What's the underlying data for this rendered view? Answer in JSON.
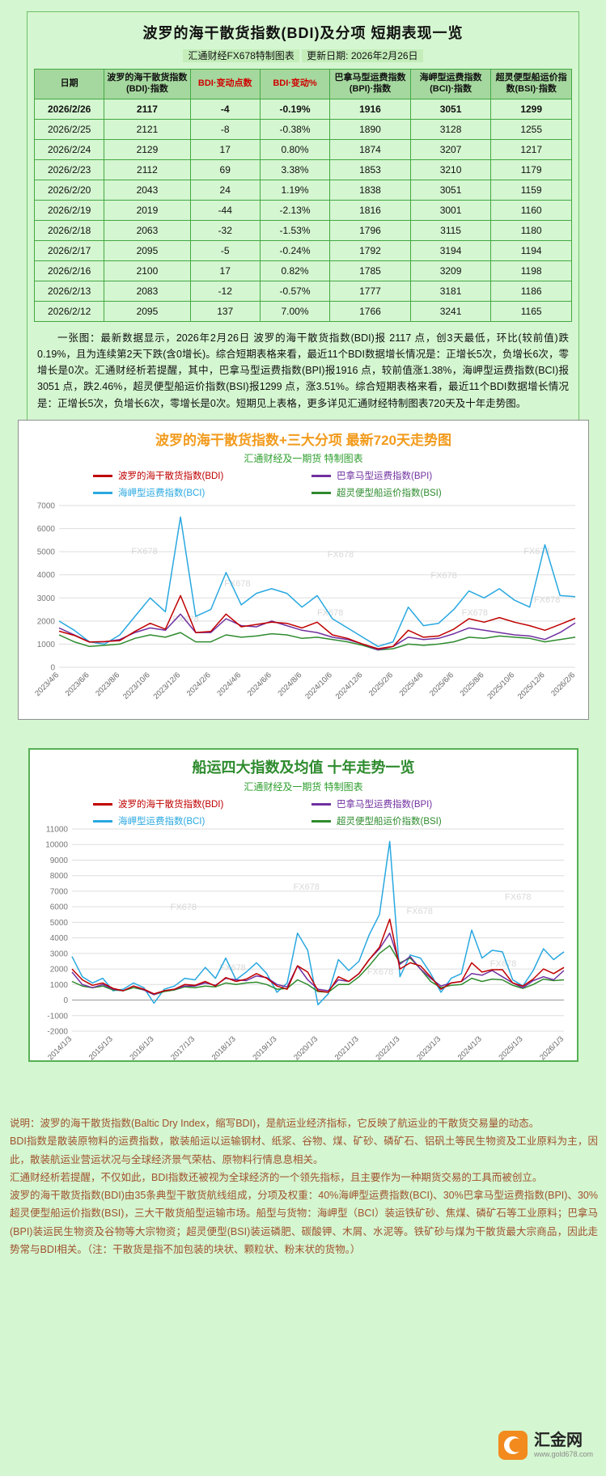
{
  "colors": {
    "page_bg": "#d4f6d0",
    "table_border": "#44a944",
    "header_bg": "#a5d89e",
    "accent_red": "#d00000",
    "chart1_title": "#f29b1d",
    "chart2_title": "#2e8b2e",
    "notes_text": "#a0522d",
    "logo_orange": "#f28a1e"
  },
  "table_panel": {
    "title": "波罗的海干散货指数(BDI)及分项 短期表现一览",
    "subtitle_left": "汇通财经FX678特制图表",
    "subtitle_right": "更新日期: 2026年2月26日",
    "columns": [
      "日期",
      "波罗的海干散货指数(BDI)·指数",
      "BDI·变动点数",
      "BDI·变动%",
      "巴拿马型运费指数(BPI)·指数",
      "海岬型运费指数(BCI)·指数",
      "超灵便型船运价指数(BSI)·指数"
    ],
    "rows": [
      [
        "2026/2/26",
        "2117",
        "-4",
        "-0.19%",
        "1916",
        "3051",
        "1299"
      ],
      [
        "2026/2/25",
        "2121",
        "-8",
        "-0.38%",
        "1890",
        "3128",
        "1255"
      ],
      [
        "2026/2/24",
        "2129",
        "17",
        "0.80%",
        "1874",
        "3207",
        "1217"
      ],
      [
        "2026/2/23",
        "2112",
        "69",
        "3.38%",
        "1853",
        "3210",
        "1179"
      ],
      [
        "2026/2/20",
        "2043",
        "24",
        "1.19%",
        "1838",
        "3051",
        "1159"
      ],
      [
        "2026/2/19",
        "2019",
        "-44",
        "-2.13%",
        "1816",
        "3001",
        "1160"
      ],
      [
        "2026/2/18",
        "2063",
        "-32",
        "-1.53%",
        "1796",
        "3115",
        "1180"
      ],
      [
        "2026/2/17",
        "2095",
        "-5",
        "-0.24%",
        "1792",
        "3194",
        "1194"
      ],
      [
        "2026/2/16",
        "2100",
        "17",
        "0.82%",
        "1785",
        "3209",
        "1198"
      ],
      [
        "2026/2/13",
        "2083",
        "-12",
        "-0.57%",
        "1777",
        "3181",
        "1186"
      ],
      [
        "2026/2/12",
        "2095",
        "137",
        "7.00%",
        "1766",
        "3241",
        "1165"
      ]
    ],
    "summary": "一张图：最新数据显示，2026年2月26日 波罗的海干散货指数(BDI)报 2117 点，创3天最低，环比(较前值)跌0.19%，且为连续第2天下跌(含0增长)。综合短期表格来看，最近11个BDI数据增长情况是：正增长5次，负增长6次，零增长是0次。汇通财经析若提醒，其中，巴拿马型运费指数(BPI)报1916 点，较前值涨1.38%，海岬型运费指数(BCI)报3051 点，跌2.46%，超灵便型船运价指数(BSI)报1299 点，涨3.51%。综合短期表格来看，最近11个BDI数据增长情况是：正增长5次，负增长6次，零增长是0次。短期见上表格，更多详见汇通财经特制图表720天及十年走势图。"
  },
  "notes": {
    "p1": "说明：波罗的海干散货指数(Baltic Dry Index，缩写BDI)，是航运业经济指标，它反映了航运业的干散货交易量的动态。",
    "p2": "BDI指数是散装原物料的运费指数，散装船运以运输钢材、纸浆、谷物、煤、矿砂、磷矿石、铝矾土等民生物资及工业原料为主，因此，散装航运业营运状况与全球经济景气荣枯、原物料行情息息相关。",
    "p3": "汇通财经析若提醒，不仅如此，BDI指数还被视为全球经济的一个领先指标，且主要作为一种期货交易的工具而被创立。",
    "p4": "波罗的海干散货指数(BDI)由35条典型干散货航线组成，分项及权重：40%海岬型运费指数(BCI)、30%巴拿马型运费指数(BPI)、30%超灵便型船运价指数(BSI)，三大干散货船型运输市场。船型与货物：海岬型（BCI）装运铁矿砂、焦煤、磷矿石等工业原料；巴拿马(BPI)装运民生物资及谷物等大宗物资；超灵便型(BSI)装运磷肥、碳酸钾、木屑、水泥等。铁矿砂与煤为干散货最大宗商品，因此走势常与BDI相关。（注：干散货是指不加包装的块状、颗粒状、粉末状的货物。）"
  },
  "logo": {
    "name": "汇金网",
    "url": "www.gold678.com"
  },
  "chart_data": [
    {
      "type": "line",
      "title": "波罗的海干散货指数+三大分项  最新720天走势图",
      "subtitle": "汇通财经及一期货 特制图表",
      "title_color": "#f29b1d",
      "watermark": "FX678",
      "legend_position": "top",
      "grid": true,
      "ylim": [
        0,
        7000
      ],
      "ystep": 1000,
      "x_labels": [
        "2023/4/6",
        "2023/6/6",
        "2023/8/6",
        "2023/10/6",
        "2023/12/6",
        "2024/2/6",
        "2024/4/6",
        "2024/6/6",
        "2024/8/6",
        "2024/10/6",
        "2024/12/6",
        "2025/2/6",
        "2025/4/6",
        "2025/6/6",
        "2025/8/6",
        "2025/10/6",
        "2025/12/6",
        "2026/2/6"
      ],
      "draw_order": [
        2,
        3,
        1,
        0
      ],
      "series": [
        {
          "name": "波罗的海干散货指数(BDI)",
          "color": "#c00000",
          "values": [
            1560,
            1380,
            1090,
            1110,
            1150,
            1550,
            1900,
            1650,
            3100,
            1500,
            1550,
            2300,
            1750,
            1850,
            1950,
            1900,
            1700,
            1950,
            1400,
            1250,
            1000,
            800,
            900,
            1600,
            1300,
            1350,
            1650,
            2100,
            1950,
            2150,
            1950,
            1800,
            1600,
            1850,
            2117
          ]
        },
        {
          "name": "巴拿马型运费指数(BPI)",
          "color": "#7030a0",
          "values": [
            1700,
            1400,
            1100,
            1100,
            1200,
            1500,
            1700,
            1600,
            2300,
            1500,
            1500,
            2100,
            1800,
            1750,
            2000,
            1800,
            1600,
            1500,
            1300,
            1200,
            1000,
            750,
            900,
            1300,
            1200,
            1250,
            1450,
            1700,
            1600,
            1500,
            1400,
            1350,
            1200,
            1500,
            1916
          ]
        },
        {
          "name": "海岬型运费指数(BCI)",
          "color": "#29a8e0",
          "values": [
            2000,
            1600,
            1100,
            1000,
            1400,
            2200,
            3000,
            2400,
            6500,
            2200,
            2500,
            4100,
            2700,
            3200,
            3400,
            3200,
            2600,
            3100,
            2100,
            1700,
            1300,
            900,
            1100,
            2600,
            1800,
            1900,
            2500,
            3300,
            3000,
            3400,
            2900,
            2600,
            5300,
            3100,
            3051
          ]
        },
        {
          "name": "超灵便型船运价指数(BSI)",
          "color": "#2e8b2e",
          "values": [
            1400,
            1100,
            900,
            950,
            1000,
            1250,
            1400,
            1300,
            1500,
            1100,
            1100,
            1400,
            1300,
            1350,
            1450,
            1400,
            1250,
            1300,
            1200,
            1100,
            950,
            750,
            800,
            1000,
            950,
            1000,
            1100,
            1300,
            1250,
            1350,
            1300,
            1250,
            1100,
            1200,
            1299
          ]
        }
      ]
    },
    {
      "type": "line",
      "title": "船运四大指数及均值 十年走势一览",
      "subtitle": "汇通财经及一期货 特制图表",
      "title_color": "#2e8b2e",
      "watermark": "FX678",
      "legend_position": "top",
      "grid": true,
      "ylim": [
        -2000,
        11000
      ],
      "ystep": 1000,
      "x_labels": [
        "2014/1/3",
        "2015/1/3",
        "2016/1/3",
        "2017/1/3",
        "2018/1/3",
        "2019/1/3",
        "2020/1/3",
        "2021/1/3",
        "2022/1/3",
        "2023/1/3",
        "2024/1/3",
        "2025/1/3",
        "2026/1/3"
      ],
      "draw_order": [
        2,
        3,
        1,
        0
      ],
      "series": [
        {
          "name": "波罗的海干散货指数(BDI)",
          "color": "#c00000",
          "values": [
            2000,
            1300,
            950,
            1100,
            750,
            600,
            900,
            700,
            400,
            600,
            700,
            1000,
            950,
            1200,
            900,
            1450,
            1200,
            1350,
            1700,
            1400,
            900,
            700,
            2200,
            1800,
            600,
            500,
            1500,
            1200,
            1700,
            2600,
            3400,
            5200,
            2000,
            2400,
            2200,
            1500,
            700,
            1100,
            1200,
            2400,
            1800,
            1950,
            1950,
            1100,
            900,
            1350,
            2000,
            1700,
            2100
          ]
        },
        {
          "name": "巴拿马型运费指数(BPI)",
          "color": "#7030a0",
          "values": [
            1800,
            1000,
            800,
            1000,
            700,
            600,
            900,
            650,
            350,
            600,
            700,
            900,
            900,
            1100,
            950,
            1400,
            1300,
            1250,
            1550,
            1450,
            1000,
            850,
            2200,
            1300,
            700,
            600,
            1300,
            1200,
            1700,
            2600,
            3300,
            4300,
            2300,
            2800,
            2000,
            1400,
            900,
            1100,
            1200,
            1700,
            1600,
            1900,
            1500,
            1100,
            800,
            1250,
            1500,
            1300,
            1900
          ]
        },
        {
          "name": "海岬型运费指数(BCI)",
          "color": "#29a8e0",
          "values": [
            2800,
            1500,
            1100,
            1400,
            600,
            700,
            1100,
            800,
            -200,
            700,
            900,
            1400,
            1300,
            2100,
            1400,
            2700,
            1300,
            1800,
            2400,
            1700,
            500,
            1100,
            4300,
            3200,
            -300,
            400,
            2600,
            1900,
            2500,
            4200,
            5500,
            10200,
            1500,
            2900,
            2700,
            1700,
            500,
            1400,
            1700,
            4500,
            2700,
            3200,
            3100,
            1300,
            900,
            1900,
            3300,
            2600,
            3100
          ]
        },
        {
          "name": "超灵便型船运价指数(BSI)",
          "color": "#2e8b2e",
          "values": [
            1200,
            900,
            800,
            900,
            650,
            600,
            800,
            650,
            350,
            550,
            650,
            850,
            800,
            900,
            850,
            1100,
            1000,
            1100,
            1150,
            1000,
            700,
            750,
            1300,
            1000,
            550,
            500,
            1000,
            1000,
            1500,
            2200,
            3000,
            3500,
            2400,
            2700,
            2000,
            1200,
            800,
            950,
            1000,
            1400,
            1200,
            1350,
            1300,
            950,
            750,
            1000,
            1350,
            1250,
            1300
          ]
        }
      ]
    }
  ]
}
